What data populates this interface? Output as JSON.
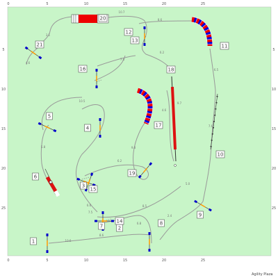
{
  "ruler": {
    "top": [
      "0",
      "5",
      "10",
      "15",
      "20",
      "25"
    ],
    "bottom": [
      "0",
      "5",
      "10",
      "15",
      "20",
      "25"
    ],
    "left": [
      "5",
      "10",
      "15",
      "20",
      "25"
    ],
    "right": [
      "5",
      "10",
      "15",
      "20",
      "25"
    ]
  },
  "credit": "Agility Plaza",
  "colors": {
    "field": "#c8f5c8",
    "path": "#999999",
    "tunnel_red": "#ee0000",
    "tunnel_blue": "#0000dd",
    "bar": "#dd1111",
    "pole": "#0000cc",
    "marker": "#ff9900"
  },
  "obstacles": [
    {
      "number": "1"
    },
    {
      "number": "2"
    },
    {
      "number": "3"
    },
    {
      "number": "4"
    },
    {
      "number": "5"
    },
    {
      "number": "6"
    },
    {
      "number": "7"
    },
    {
      "number": "8"
    },
    {
      "number": "9"
    },
    {
      "number": "10"
    },
    {
      "number": "11"
    },
    {
      "number": "12"
    },
    {
      "number": "13"
    },
    {
      "number": "14"
    },
    {
      "number": "15"
    },
    {
      "number": "16"
    },
    {
      "number": "17"
    },
    {
      "number": "18"
    },
    {
      "number": "19"
    },
    {
      "number": "20"
    },
    {
      "number": "21"
    }
  ],
  "distances": [
    "10.6",
    "8.6",
    "2.4",
    "5.8",
    "6.6",
    "8.5",
    "6.8",
    "10.7",
    "6.2",
    "8.6",
    "7.4",
    "6.2",
    "5.0",
    "10.5",
    "9.8",
    "4.6",
    "6.5",
    "7.6",
    "3.1",
    "4.6",
    "9.7",
    "7.5"
  ]
}
